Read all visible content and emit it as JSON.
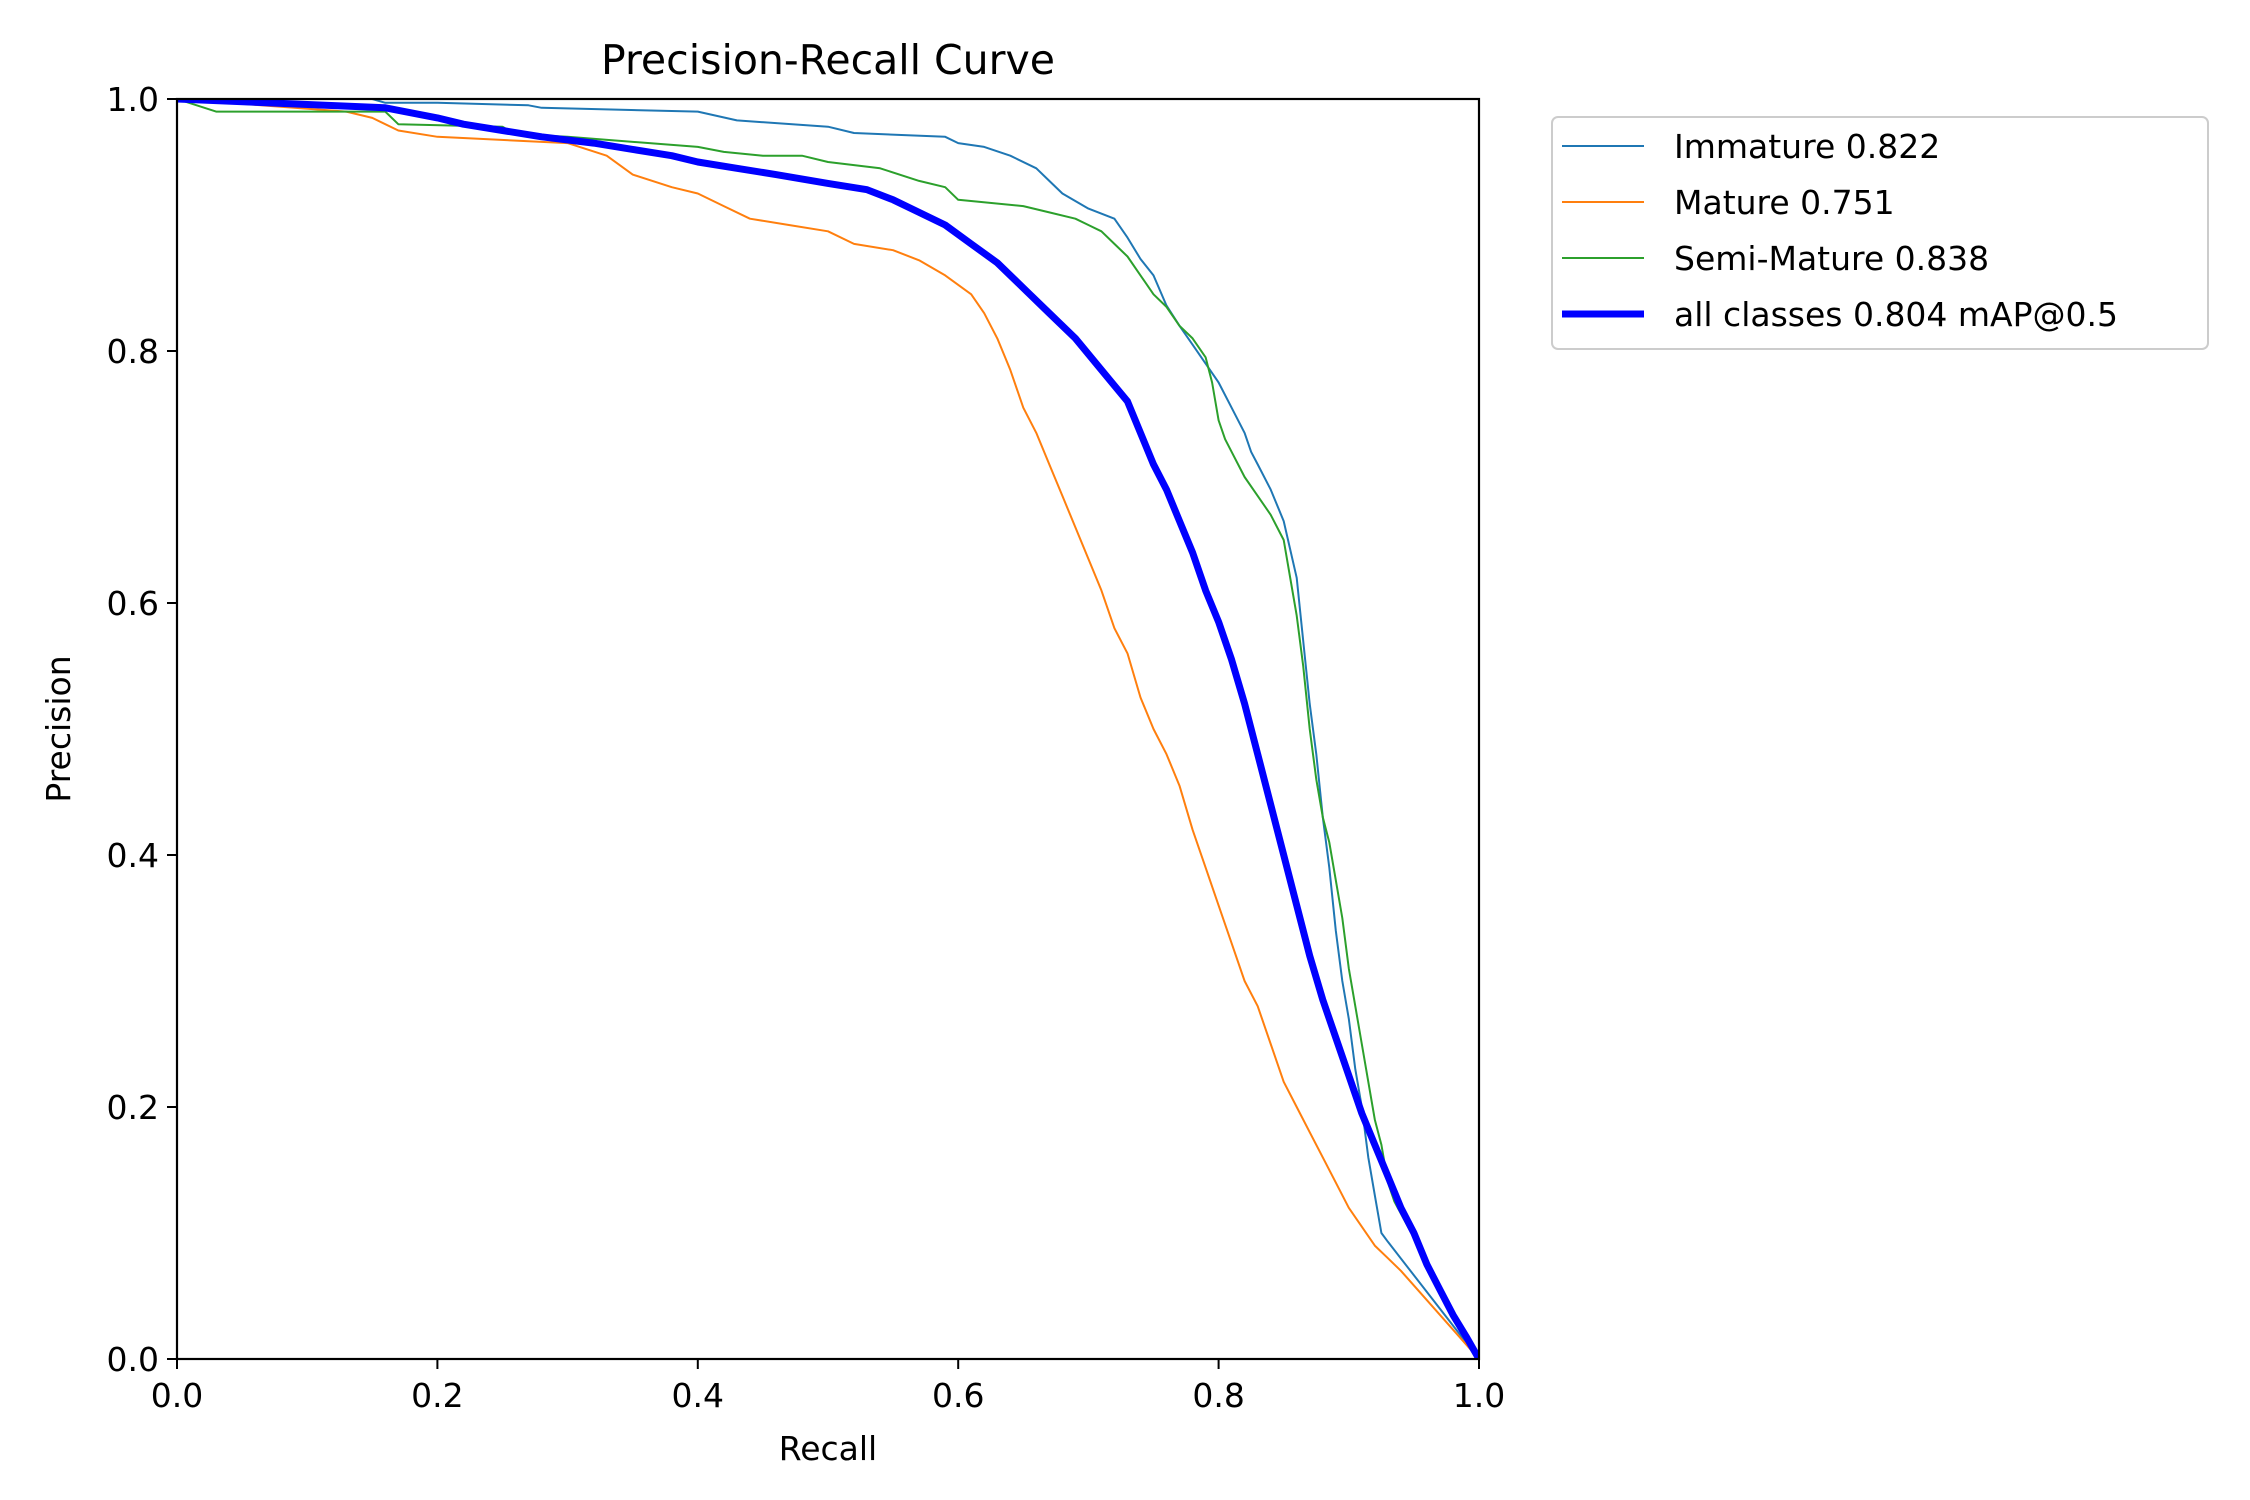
{
  "chart_data": {
    "type": "line",
    "title": "Precision-Recall Curve",
    "xlabel": "Recall",
    "ylabel": "Precision",
    "xlim": [
      0,
      1
    ],
    "ylim": [
      0,
      1
    ],
    "xticks": [
      "0.0",
      "0.2",
      "0.4",
      "0.6",
      "0.8",
      "1.0"
    ],
    "yticks": [
      "0.0",
      "0.2",
      "0.4",
      "0.6",
      "0.8",
      "1.0"
    ],
    "grid": false,
    "legend_position": "outside upper right",
    "series": [
      {
        "name": "Immature 0.822",
        "color": "#1f77b4",
        "linewidth": 2,
        "points": [
          [
            0.0,
            1.0
          ],
          [
            0.15,
            1.0
          ],
          [
            0.16,
            0.997
          ],
          [
            0.2,
            0.997
          ],
          [
            0.27,
            0.995
          ],
          [
            0.28,
            0.993
          ],
          [
            0.4,
            0.99
          ],
          [
            0.43,
            0.983
          ],
          [
            0.5,
            0.978
          ],
          [
            0.52,
            0.973
          ],
          [
            0.59,
            0.97
          ],
          [
            0.6,
            0.965
          ],
          [
            0.62,
            0.962
          ],
          [
            0.64,
            0.955
          ],
          [
            0.66,
            0.945
          ],
          [
            0.67,
            0.935
          ],
          [
            0.68,
            0.925
          ],
          [
            0.7,
            0.913
          ],
          [
            0.72,
            0.905
          ],
          [
            0.73,
            0.89
          ],
          [
            0.74,
            0.873
          ],
          [
            0.75,
            0.86
          ],
          [
            0.76,
            0.836
          ],
          [
            0.77,
            0.82
          ],
          [
            0.78,
            0.805
          ],
          [
            0.79,
            0.79
          ],
          [
            0.8,
            0.775
          ],
          [
            0.81,
            0.755
          ],
          [
            0.82,
            0.735
          ],
          [
            0.825,
            0.72
          ],
          [
            0.83,
            0.71
          ],
          [
            0.84,
            0.69
          ],
          [
            0.85,
            0.665
          ],
          [
            0.86,
            0.62
          ],
          [
            0.865,
            0.57
          ],
          [
            0.87,
            0.52
          ],
          [
            0.875,
            0.48
          ],
          [
            0.88,
            0.43
          ],
          [
            0.885,
            0.39
          ],
          [
            0.89,
            0.34
          ],
          [
            0.895,
            0.3
          ],
          [
            0.9,
            0.27
          ],
          [
            0.905,
            0.23
          ],
          [
            0.91,
            0.2
          ],
          [
            0.915,
            0.16
          ],
          [
            0.92,
            0.13
          ],
          [
            0.925,
            0.1
          ],
          [
            0.93,
            0.093
          ],
          [
            1.0,
            0.0
          ]
        ]
      },
      {
        "name": "Mature 0.751",
        "color": "#ff7f0e",
        "linewidth": 2,
        "points": [
          [
            0.0,
            1.0
          ],
          [
            0.13,
            0.99
          ],
          [
            0.15,
            0.985
          ],
          [
            0.17,
            0.975
          ],
          [
            0.2,
            0.97
          ],
          [
            0.3,
            0.965
          ],
          [
            0.33,
            0.955
          ],
          [
            0.35,
            0.94
          ],
          [
            0.38,
            0.93
          ],
          [
            0.4,
            0.925
          ],
          [
            0.42,
            0.915
          ],
          [
            0.44,
            0.905
          ],
          [
            0.47,
            0.9
          ],
          [
            0.5,
            0.895
          ],
          [
            0.52,
            0.885
          ],
          [
            0.55,
            0.88
          ],
          [
            0.57,
            0.872
          ],
          [
            0.59,
            0.86
          ],
          [
            0.61,
            0.845
          ],
          [
            0.62,
            0.83
          ],
          [
            0.63,
            0.81
          ],
          [
            0.64,
            0.785
          ],
          [
            0.65,
            0.755
          ],
          [
            0.66,
            0.735
          ],
          [
            0.67,
            0.71
          ],
          [
            0.68,
            0.685
          ],
          [
            0.69,
            0.66
          ],
          [
            0.7,
            0.635
          ],
          [
            0.71,
            0.61
          ],
          [
            0.72,
            0.58
          ],
          [
            0.73,
            0.56
          ],
          [
            0.74,
            0.525
          ],
          [
            0.75,
            0.5
          ],
          [
            0.76,
            0.48
          ],
          [
            0.77,
            0.455
          ],
          [
            0.78,
            0.42
          ],
          [
            0.79,
            0.39
          ],
          [
            0.8,
            0.36
          ],
          [
            0.81,
            0.33
          ],
          [
            0.82,
            0.3
          ],
          [
            0.83,
            0.28
          ],
          [
            0.84,
            0.25
          ],
          [
            0.85,
            0.22
          ],
          [
            0.86,
            0.2
          ],
          [
            0.87,
            0.18
          ],
          [
            0.88,
            0.16
          ],
          [
            0.89,
            0.14
          ],
          [
            0.9,
            0.12
          ],
          [
            0.91,
            0.105
          ],
          [
            0.92,
            0.09
          ],
          [
            0.93,
            0.08
          ],
          [
            0.94,
            0.07
          ],
          [
            1.0,
            0.0
          ]
        ]
      },
      {
        "name": "Semi-Mature 0.838",
        "color": "#2ca02c",
        "linewidth": 2,
        "points": [
          [
            0.0,
            1.0
          ],
          [
            0.03,
            0.99
          ],
          [
            0.16,
            0.99
          ],
          [
            0.17,
            0.98
          ],
          [
            0.25,
            0.978
          ],
          [
            0.26,
            0.972
          ],
          [
            0.3,
            0.97
          ],
          [
            0.4,
            0.962
          ],
          [
            0.42,
            0.958
          ],
          [
            0.45,
            0.955
          ],
          [
            0.48,
            0.955
          ],
          [
            0.5,
            0.95
          ],
          [
            0.54,
            0.945
          ],
          [
            0.57,
            0.935
          ],
          [
            0.59,
            0.93
          ],
          [
            0.6,
            0.92
          ],
          [
            0.65,
            0.915
          ],
          [
            0.67,
            0.91
          ],
          [
            0.69,
            0.905
          ],
          [
            0.7,
            0.9
          ],
          [
            0.71,
            0.895
          ],
          [
            0.72,
            0.885
          ],
          [
            0.73,
            0.875
          ],
          [
            0.74,
            0.86
          ],
          [
            0.75,
            0.845
          ],
          [
            0.76,
            0.835
          ],
          [
            0.77,
            0.82
          ],
          [
            0.78,
            0.81
          ],
          [
            0.79,
            0.795
          ],
          [
            0.795,
            0.775
          ],
          [
            0.8,
            0.745
          ],
          [
            0.805,
            0.73
          ],
          [
            0.81,
            0.72
          ],
          [
            0.82,
            0.7
          ],
          [
            0.83,
            0.685
          ],
          [
            0.84,
            0.67
          ],
          [
            0.85,
            0.65
          ],
          [
            0.855,
            0.62
          ],
          [
            0.86,
            0.59
          ],
          [
            0.865,
            0.55
          ],
          [
            0.87,
            0.5
          ],
          [
            0.875,
            0.46
          ],
          [
            0.88,
            0.43
          ],
          [
            0.885,
            0.41
          ],
          [
            0.89,
            0.38
          ],
          [
            0.895,
            0.35
          ],
          [
            0.9,
            0.31
          ],
          [
            0.905,
            0.28
          ],
          [
            0.91,
            0.25
          ],
          [
            0.915,
            0.22
          ],
          [
            0.92,
            0.19
          ],
          [
            0.925,
            0.17
          ],
          [
            0.93,
            0.14
          ],
          [
            0.935,
            0.125
          ],
          [
            1.0,
            0.0
          ]
        ]
      },
      {
        "name": "all classes 0.804 mAP@0.5",
        "color": "#0000ff",
        "linewidth": 7,
        "points": [
          [
            0.0,
            1.0
          ],
          [
            0.16,
            0.993
          ],
          [
            0.2,
            0.985
          ],
          [
            0.22,
            0.98
          ],
          [
            0.25,
            0.975
          ],
          [
            0.28,
            0.97
          ],
          [
            0.32,
            0.965
          ],
          [
            0.35,
            0.96
          ],
          [
            0.38,
            0.955
          ],
          [
            0.4,
            0.95
          ],
          [
            0.43,
            0.945
          ],
          [
            0.46,
            0.94
          ],
          [
            0.5,
            0.933
          ],
          [
            0.53,
            0.928
          ],
          [
            0.55,
            0.92
          ],
          [
            0.57,
            0.91
          ],
          [
            0.59,
            0.9
          ],
          [
            0.61,
            0.885
          ],
          [
            0.63,
            0.87
          ],
          [
            0.65,
            0.85
          ],
          [
            0.67,
            0.83
          ],
          [
            0.69,
            0.81
          ],
          [
            0.71,
            0.785
          ],
          [
            0.73,
            0.76
          ],
          [
            0.74,
            0.735
          ],
          [
            0.75,
            0.71
          ],
          [
            0.76,
            0.69
          ],
          [
            0.77,
            0.665
          ],
          [
            0.78,
            0.64
          ],
          [
            0.79,
            0.61
          ],
          [
            0.8,
            0.585
          ],
          [
            0.81,
            0.555
          ],
          [
            0.82,
            0.52
          ],
          [
            0.83,
            0.48
          ],
          [
            0.84,
            0.44
          ],
          [
            0.85,
            0.4
          ],
          [
            0.86,
            0.36
          ],
          [
            0.87,
            0.32
          ],
          [
            0.88,
            0.285
          ],
          [
            0.89,
            0.255
          ],
          [
            0.9,
            0.225
          ],
          [
            0.91,
            0.195
          ],
          [
            0.92,
            0.17
          ],
          [
            0.93,
            0.145
          ],
          [
            0.94,
            0.12
          ],
          [
            0.95,
            0.1
          ],
          [
            0.96,
            0.075
          ],
          [
            0.97,
            0.055
          ],
          [
            0.98,
            0.035
          ],
          [
            0.99,
            0.018
          ],
          [
            1.0,
            0.0
          ]
        ]
      }
    ]
  }
}
